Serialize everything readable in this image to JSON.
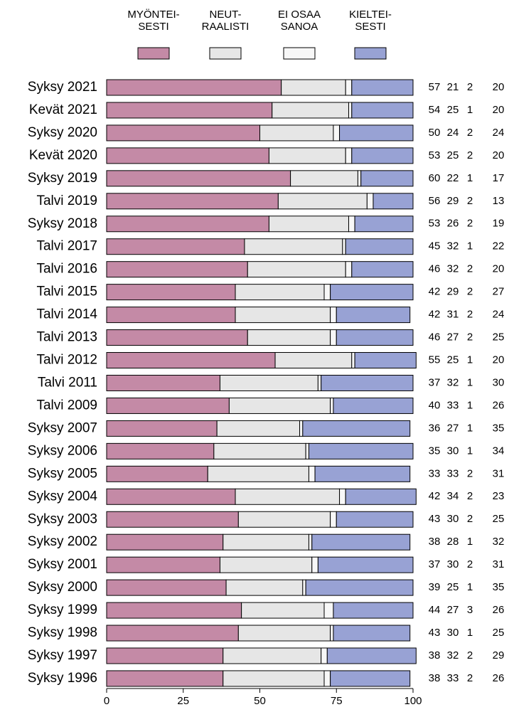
{
  "chart_data": {
    "type": "stacked-bar-horizontal",
    "categories": [
      "Syksy 2021",
      "Kevät 2021",
      "Syksy 2020",
      "Kevät 2020",
      "Syksy 2019",
      "Talvi 2019",
      "Syksy 2018",
      "Talvi 2017",
      "Talvi 2016",
      "Talvi 2015",
      "Talvi 2014",
      "Talvi 2013",
      "Talvi 2012",
      "Talvi 2011",
      "Talvi 2009",
      "Syksy 2007",
      "Syksy 2006",
      "Syksy 2005",
      "Syksy 2004",
      "Syksy 2003",
      "Syksy 2002",
      "Syksy 2001",
      "Syksy 2000",
      "Syksy 1999",
      "Syksy 1998",
      "Syksy 1997",
      "Syksy 1996"
    ],
    "series": [
      {
        "name": "MYÖNTEI-\nSESTI",
        "color": "#c48aa6",
        "values": [
          57,
          54,
          50,
          53,
          60,
          56,
          53,
          45,
          46,
          42,
          42,
          46,
          55,
          37,
          40,
          36,
          35,
          33,
          42,
          43,
          38,
          37,
          39,
          44,
          43,
          38,
          38
        ]
      },
      {
        "name": "NEUT-\nRAALISTI",
        "color": "#e6e6e6",
        "values": [
          21,
          25,
          24,
          25,
          22,
          29,
          26,
          32,
          32,
          29,
          31,
          27,
          25,
          32,
          33,
          27,
          30,
          33,
          34,
          30,
          28,
          30,
          25,
          27,
          30,
          32,
          33
        ]
      },
      {
        "name": "EI OSAA\nSANOA",
        "color": "#f7f7f7",
        "values": [
          2,
          1,
          2,
          2,
          1,
          2,
          2,
          1,
          2,
          2,
          2,
          2,
          1,
          1,
          1,
          1,
          1,
          2,
          2,
          2,
          1,
          2,
          1,
          3,
          1,
          2,
          2
        ]
      },
      {
        "name": "KIELTEI-\nSESTI",
        "color": "#98a2d4",
        "values": [
          20,
          20,
          24,
          20,
          17,
          13,
          19,
          22,
          20,
          27,
          24,
          25,
          20,
          30,
          26,
          35,
          34,
          31,
          23,
          25,
          32,
          31,
          35,
          26,
          25,
          29,
          26
        ]
      }
    ],
    "xlim": [
      0,
      100
    ],
    "xticks": [
      0,
      25,
      50,
      75,
      100
    ]
  }
}
